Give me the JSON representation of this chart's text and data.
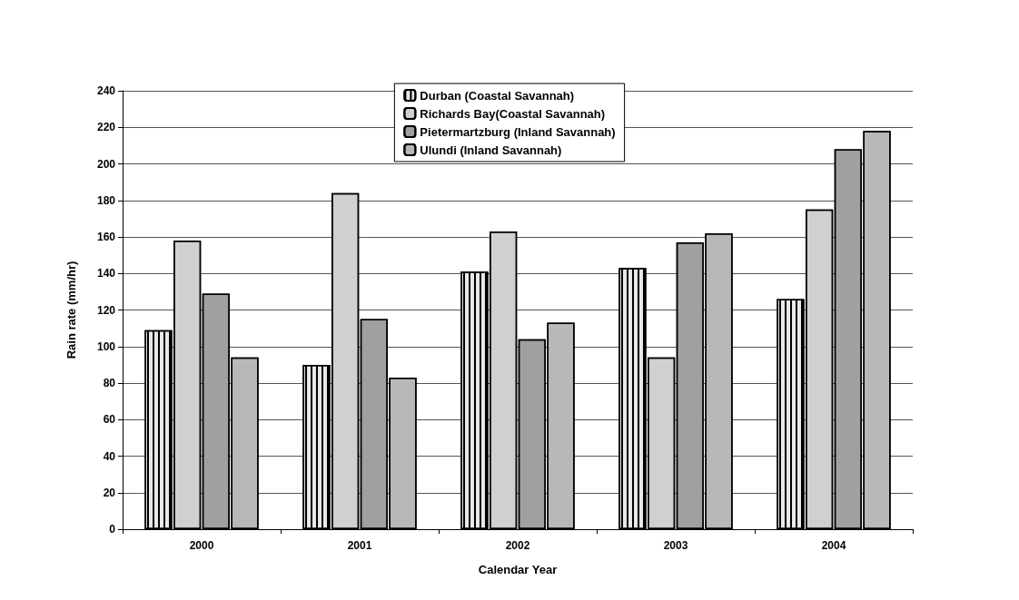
{
  "chart_data": {
    "type": "bar",
    "xlabel": "Calendar Year",
    "ylabel": "Rain rate (mm/hr)",
    "categories": [
      "2000",
      "2001",
      "2002",
      "2003",
      "2004"
    ],
    "series": [
      {
        "name": "Durban (Coastal Savannah)",
        "color": "#e8e8e8",
        "values": [
          109,
          90,
          141,
          143,
          126
        ]
      },
      {
        "name": "Richards Bay(Coastal Savannah)",
        "color": "#d0d0d0",
        "values": [
          158,
          184,
          163,
          94,
          175
        ]
      },
      {
        "name": "Pietermartzburg (Inland Savannah)",
        "color": "#a0a0a0",
        "values": [
          129,
          115,
          104,
          157,
          208
        ]
      },
      {
        "name": "Ulundi (Inland Savannah)",
        "color": "#b8b8b8",
        "values": [
          94,
          83,
          113,
          162,
          218
        ]
      }
    ],
    "ylim": [
      0,
      240
    ],
    "yticks": [
      0,
      20,
      40,
      60,
      80,
      100,
      120,
      140,
      160,
      180,
      200,
      220,
      240
    ],
    "grid": "y",
    "legend": "top"
  }
}
